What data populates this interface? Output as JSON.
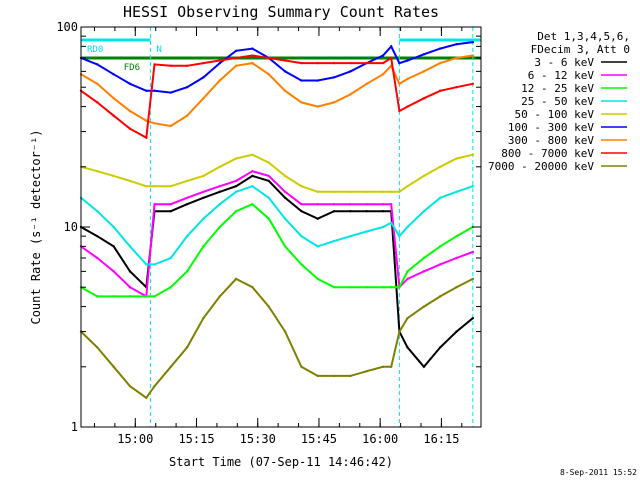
{
  "chart_data": {
    "type": "line",
    "title": "HESSI Observing Summary Count Rates",
    "xlabel": "Start Time (07-Sep-11 14:46:42)",
    "ylabel": "Count Rate (s⁻¹ detector⁻¹)",
    "yscale": "log",
    "ylim": [
      1,
      100
    ],
    "xlim_minutes": [
      0,
      98
    ],
    "x_ticks": [
      "15:00",
      "15:15",
      "15:30",
      "15:45",
      "16:00",
      "16:15"
    ],
    "y_ticks": [
      "1",
      "10",
      "100"
    ],
    "legend_header": [
      "Det 1,3,4,5,6,",
      "FDecim 3, Att 0"
    ],
    "legend_position": "right",
    "timestamp": "8-Sep-2011 15:52",
    "flags": [
      {
        "label": "RD0",
        "color": "#00e5e5",
        "start": 0,
        "end": 17
      },
      {
        "label": "N",
        "color": "#00e5e5",
        "start": 17,
        "end": 17
      },
      {
        "label": "FD6",
        "color": "#008000",
        "start": 9,
        "end": 29
      },
      {
        "label": "",
        "color": "#00e5e5",
        "start": 78,
        "end": 98
      },
      {
        "label": "",
        "color": "#008000",
        "start": 0,
        "end": 98
      }
    ],
    "series": [
      {
        "name": "3 - 6 keV",
        "color": "#000000",
        "x": [
          0,
          4,
          8,
          12,
          16,
          18,
          22,
          26,
          30,
          34,
          38,
          42,
          46,
          50,
          54,
          58,
          62,
          66,
          70,
          74,
          76,
          78,
          80,
          84,
          88,
          92,
          96
        ],
        "values": [
          10,
          9,
          8,
          6,
          5,
          12,
          12,
          13,
          14,
          15,
          16,
          18,
          17,
          14,
          12,
          11,
          12,
          12,
          12,
          12,
          12,
          3,
          2.5,
          2,
          2.5,
          3,
          3.5
        ]
      },
      {
        "name": "6 - 12 keV",
        "color": "#ff00ff",
        "x": [
          0,
          4,
          8,
          12,
          16,
          18,
          22,
          26,
          30,
          34,
          38,
          42,
          46,
          50,
          54,
          58,
          62,
          66,
          70,
          74,
          76,
          78,
          80,
          84,
          88,
          92,
          96
        ],
        "values": [
          8,
          7,
          6,
          5,
          4.5,
          13,
          13,
          14,
          15,
          16,
          17,
          19,
          18,
          15,
          13,
          13,
          13,
          13,
          13,
          13,
          13,
          5,
          5.5,
          6,
          6.5,
          7,
          7.5
        ]
      },
      {
        "name": "12 - 25 keV",
        "color": "#00ff00",
        "x": [
          0,
          4,
          8,
          12,
          16,
          18,
          22,
          26,
          30,
          34,
          38,
          42,
          46,
          50,
          54,
          58,
          62,
          66,
          70,
          74,
          76,
          78,
          80,
          84,
          88,
          92,
          96
        ],
        "values": [
          5,
          4.5,
          4.5,
          4.5,
          4.5,
          4.5,
          5,
          6,
          8,
          10,
          12,
          13,
          11,
          8,
          6.5,
          5.5,
          5,
          5,
          5,
          5,
          5,
          5,
          6,
          7,
          8,
          9,
          10
        ]
      },
      {
        "name": "25 - 50 keV",
        "color": "#00e5e5",
        "x": [
          0,
          4,
          8,
          12,
          16,
          18,
          22,
          26,
          30,
          34,
          38,
          42,
          46,
          50,
          54,
          58,
          62,
          66,
          70,
          74,
          76,
          78,
          80,
          84,
          88,
          92,
          96
        ],
        "values": [
          14,
          12,
          10,
          8,
          6.5,
          6.5,
          7,
          9,
          11,
          13,
          15,
          16,
          14,
          11,
          9,
          8,
          8.5,
          9,
          9.5,
          10,
          10.5,
          9,
          10,
          12,
          14,
          15,
          16
        ]
      },
      {
        "name": "50 - 100 keV",
        "color": "#cccc00",
        "x": [
          0,
          4,
          8,
          12,
          16,
          18,
          22,
          26,
          30,
          34,
          38,
          42,
          46,
          50,
          54,
          58,
          62,
          66,
          70,
          74,
          76,
          78,
          80,
          84,
          88,
          92,
          96
        ],
        "values": [
          20,
          19,
          18,
          17,
          16,
          16,
          16,
          17,
          18,
          20,
          22,
          23,
          21,
          18,
          16,
          15,
          15,
          15,
          15,
          15,
          15,
          15,
          16,
          18,
          20,
          22,
          23
        ]
      },
      {
        "name": "100 - 300 keV",
        "color": "#0000ff",
        "x": [
          0,
          4,
          8,
          12,
          16,
          18,
          22,
          26,
          30,
          34,
          38,
          42,
          46,
          50,
          54,
          58,
          62,
          66,
          70,
          74,
          76,
          78,
          80,
          84,
          88,
          92,
          96
        ],
        "values": [
          70,
          65,
          58,
          52,
          48,
          48,
          47,
          50,
          56,
          66,
          76,
          78,
          70,
          60,
          54,
          54,
          56,
          60,
          66,
          72,
          80,
          66,
          68,
          73,
          78,
          82,
          84
        ]
      },
      {
        "name": "300 - 800 keV",
        "color": "#ff8000",
        "x": [
          0,
          4,
          8,
          12,
          16,
          18,
          22,
          26,
          30,
          34,
          38,
          42,
          46,
          50,
          54,
          58,
          62,
          66,
          70,
          74,
          76,
          78,
          80,
          84,
          88,
          92,
          96
        ],
        "values": [
          58,
          52,
          44,
          38,
          34,
          33,
          32,
          36,
          44,
          54,
          64,
          66,
          58,
          48,
          42,
          40,
          42,
          46,
          52,
          58,
          64,
          52,
          55,
          60,
          66,
          70,
          72
        ]
      },
      {
        "name": "800 - 7000 keV",
        "color": "#ff0000",
        "x": [
          0,
          4,
          8,
          12,
          16,
          18,
          22,
          26,
          30,
          34,
          38,
          42,
          46,
          50,
          54,
          58,
          62,
          66,
          70,
          74,
          76,
          78,
          80,
          84,
          88,
          92,
          96
        ],
        "values": [
          48,
          42,
          36,
          31,
          28,
          65,
          64,
          64,
          66,
          68,
          70,
          72,
          70,
          68,
          66,
          66,
          66,
          66,
          66,
          66,
          70,
          38,
          40,
          44,
          48,
          50,
          52
        ]
      },
      {
        "name": "7000 - 20000 keV",
        "color": "#808000",
        "x": [
          0,
          4,
          8,
          12,
          16,
          18,
          22,
          26,
          30,
          34,
          38,
          42,
          46,
          50,
          54,
          58,
          62,
          66,
          70,
          74,
          76,
          78,
          80,
          84,
          88,
          92,
          96
        ],
        "values": [
          3,
          2.5,
          2,
          1.6,
          1.4,
          1.6,
          2,
          2.5,
          3.5,
          4.5,
          5.5,
          5,
          4,
          3,
          2,
          1.8,
          1.8,
          1.8,
          1.9,
          2,
          2,
          3,
          3.5,
          4,
          4.5,
          5,
          5.5
        ]
      }
    ]
  }
}
